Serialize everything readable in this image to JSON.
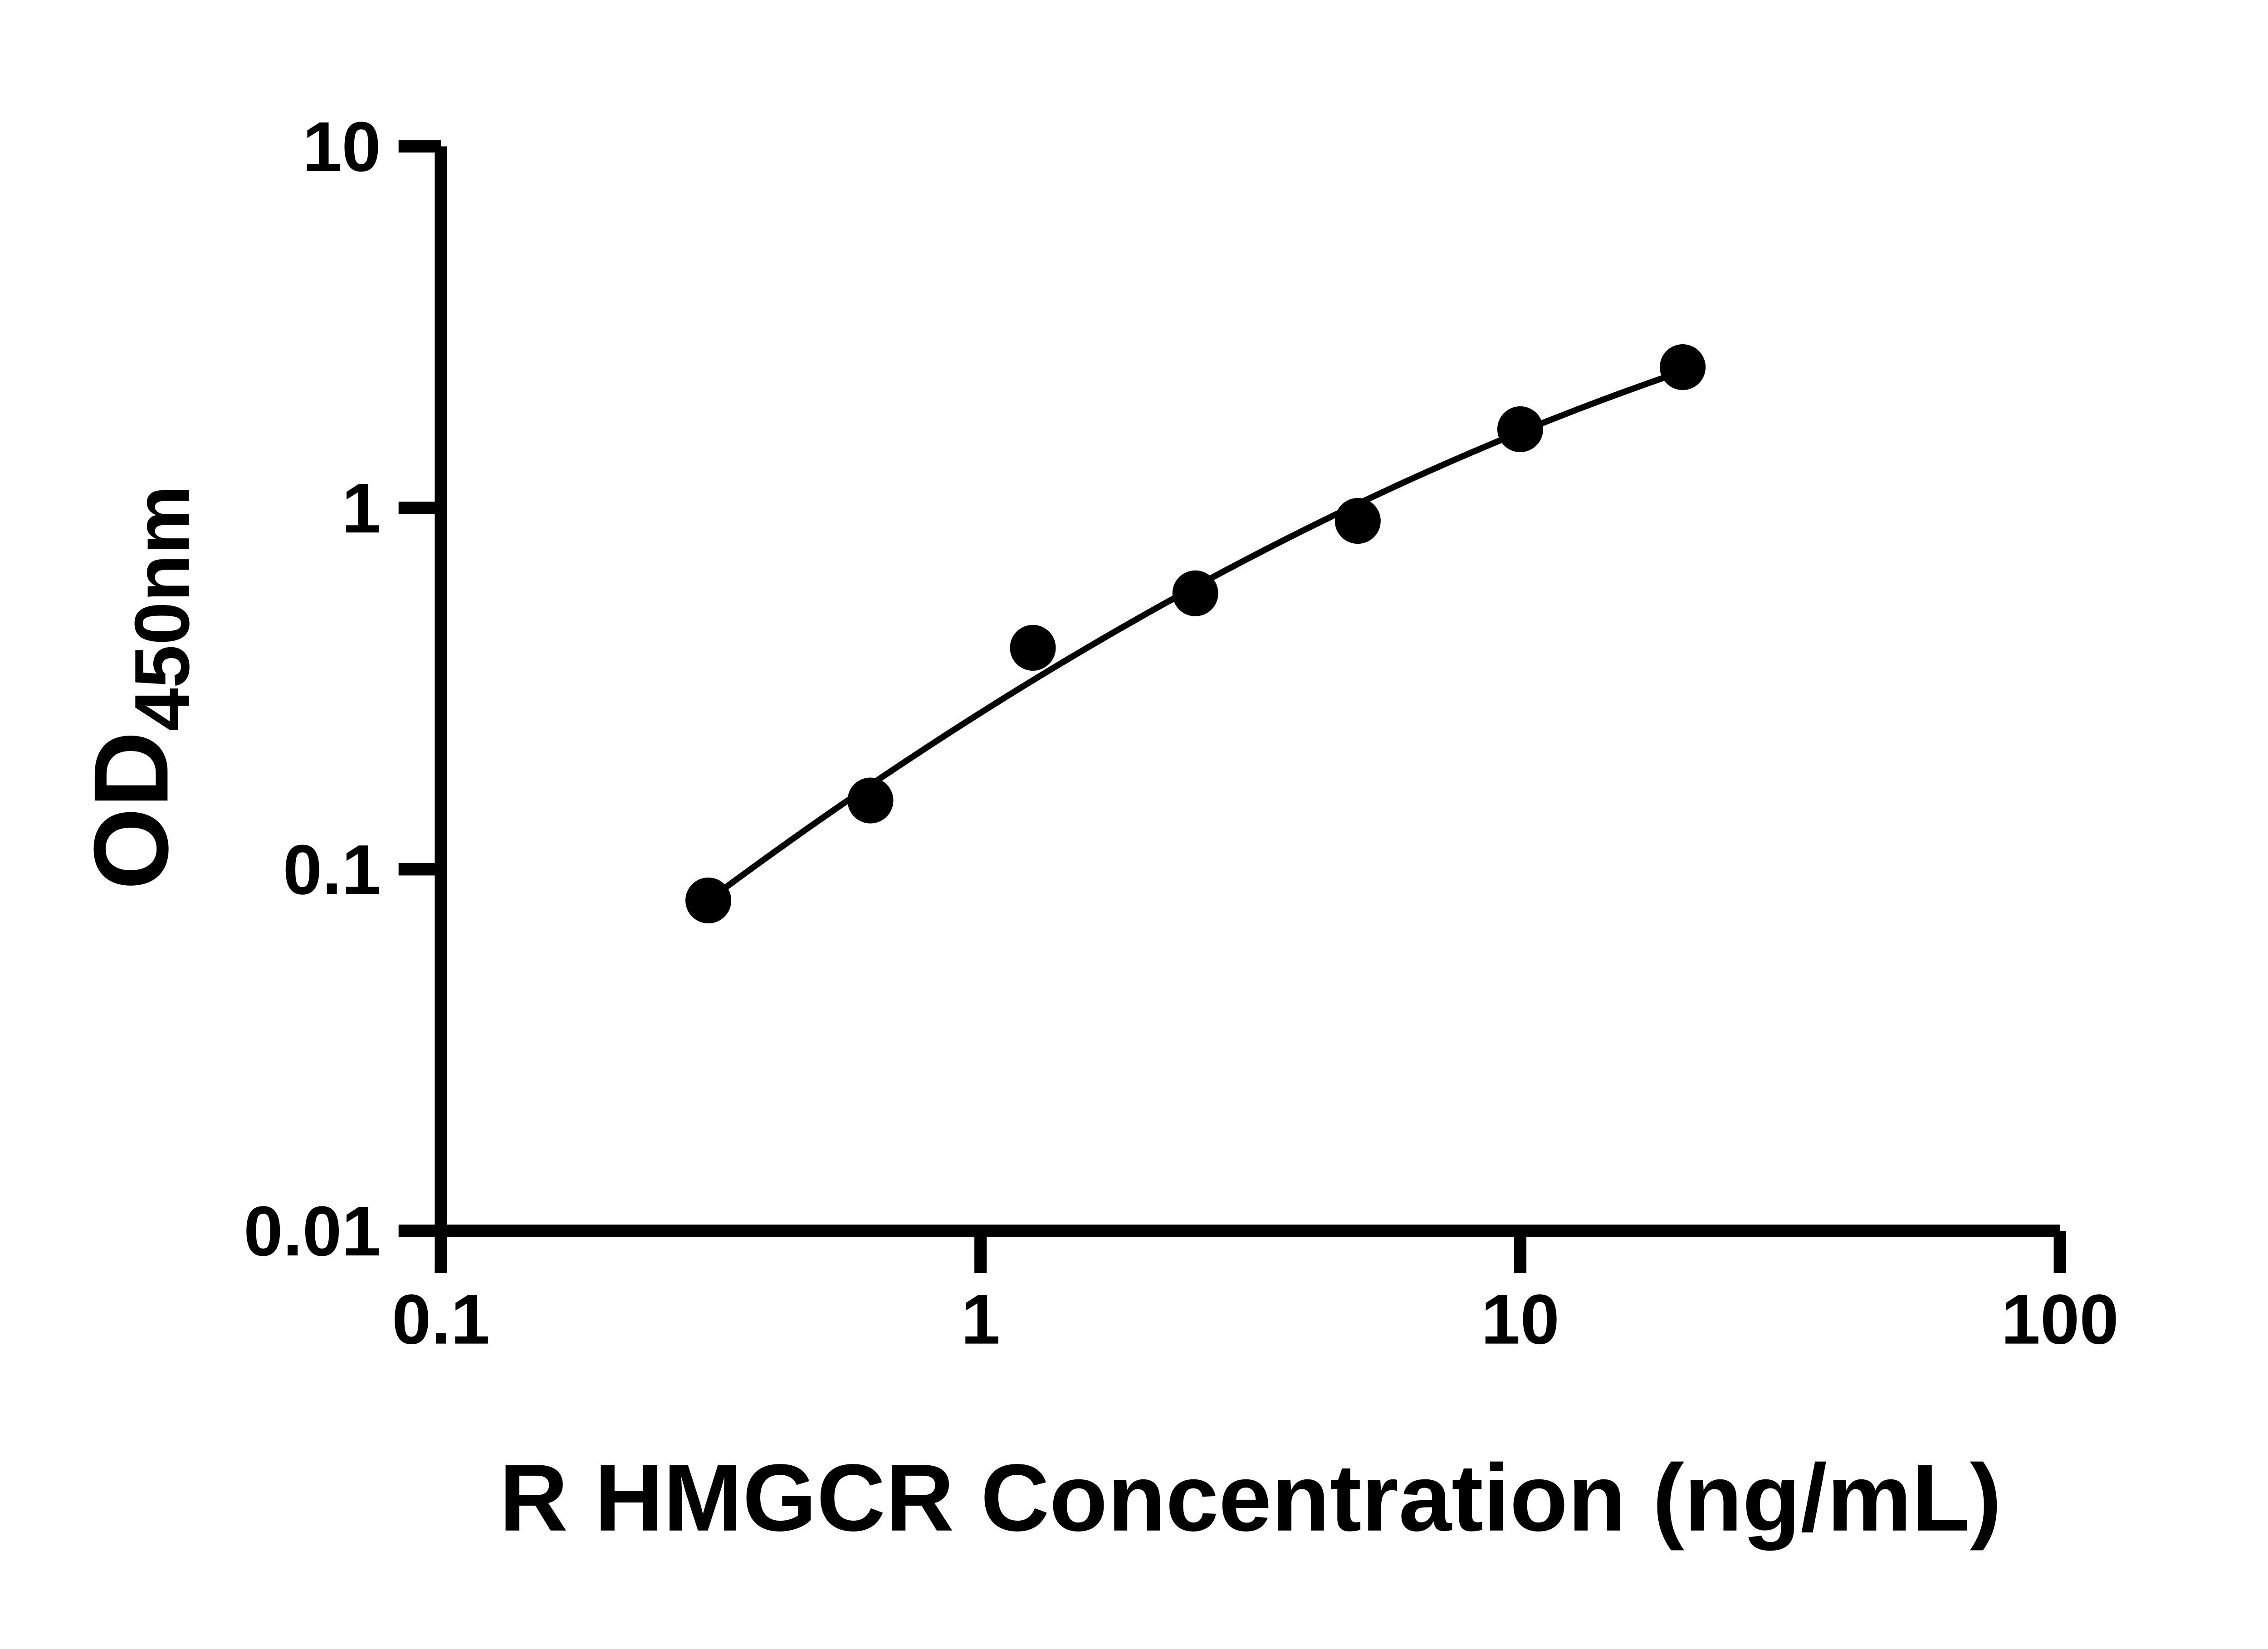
{
  "colors": {
    "background": "#ffffff",
    "axis": "#000000",
    "marker": "#000000",
    "fit_line": "#000000"
  },
  "chart_data": {
    "type": "scatter",
    "title": "",
    "xlabel": "R HMGCR Concentration (ng/mL)",
    "ylabel": "OD450nm",
    "ylabel_main": "OD",
    "ylabel_sub": "450nm",
    "x_scale": "log",
    "y_scale": "log",
    "xlim": [
      0.1,
      100
    ],
    "ylim": [
      0.01,
      10
    ],
    "x_ticks": [
      "0.1",
      "1",
      "10",
      "100"
    ],
    "y_ticks": [
      "0.01",
      "0.1",
      "1",
      "10"
    ],
    "grid": false,
    "legend": "none",
    "trendline": true,
    "series": [
      {
        "marker": "filled-circle",
        "color": "#000000",
        "x": [
          0.313,
          0.625,
          1.25,
          2.5,
          5,
          10,
          20
        ],
        "y": [
          0.082,
          0.155,
          0.41,
          0.58,
          0.92,
          1.65,
          2.45
        ]
      }
    ]
  }
}
